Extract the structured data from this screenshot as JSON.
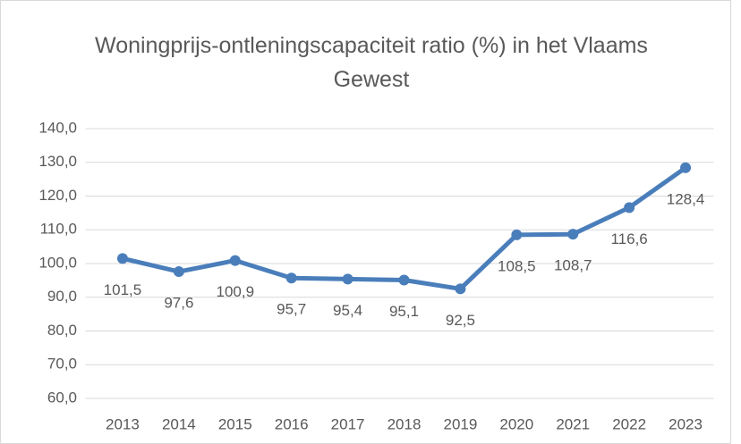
{
  "chart_data": {
    "type": "line",
    "title": "Woningprijs-ontleningscapaciteit ratio (%) in het Vlaams Gewest",
    "categories": [
      "2013",
      "2014",
      "2015",
      "2016",
      "2017",
      "2018",
      "2019",
      "2020",
      "2021",
      "2022",
      "2023"
    ],
    "series": [
      {
        "name": "Woningprijs-ontleningscapaciteit ratio",
        "color": "#4a7ebb",
        "values": [
          101.5,
          97.6,
          100.9,
          95.7,
          95.4,
          95.1,
          92.5,
          108.5,
          108.7,
          116.6,
          128.4
        ],
        "value_labels": [
          "101,5",
          "97,6",
          "100,9",
          "95,7",
          "95,4",
          "95,1",
          "92,5",
          "108,5",
          "108,7",
          "116,6",
          "128,4"
        ]
      }
    ],
    "ylim": [
      60,
      140
    ],
    "yticks": [
      {
        "value": 60,
        "label": "60,0"
      },
      {
        "value": 70,
        "label": "70,0"
      },
      {
        "value": 80,
        "label": "80,0"
      },
      {
        "value": 90,
        "label": "90,0"
      },
      {
        "value": 100,
        "label": "100,0"
      },
      {
        "value": 110,
        "label": "110,0"
      },
      {
        "value": 120,
        "label": "120,0"
      },
      {
        "value": 130,
        "label": "130,0"
      },
      {
        "value": 140,
        "label": "140,0"
      }
    ],
    "grid": true
  }
}
